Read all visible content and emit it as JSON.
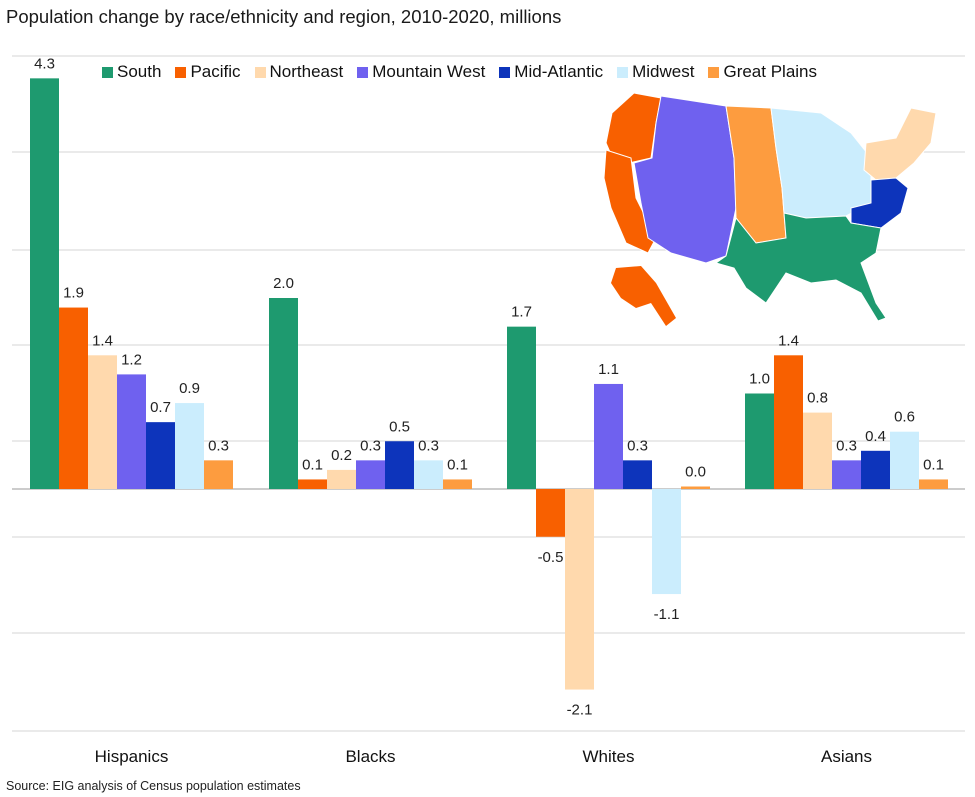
{
  "title": "Population change by race/ethnicity and region, 2010-2020, millions",
  "source": "Source: EIG analysis of Census population estimates",
  "map_icon": "us-regions-map",
  "chart_data": {
    "type": "bar",
    "title": "Population change by race/ethnicity and region, 2010-2020, millions",
    "xlabel": "",
    "ylabel": "",
    "ylim": [
      -2.6,
      4.6
    ],
    "grid": true,
    "legend_position": "top",
    "categories": [
      "Hispanics",
      "Blacks",
      "Whites",
      "Asians"
    ],
    "series": [
      {
        "name": "South",
        "color": "#1e9a6f",
        "values": [
          4.3,
          2.0,
          1.7,
          1.0
        ]
      },
      {
        "name": "Pacific",
        "color": "#f86000",
        "values": [
          1.9,
          0.1,
          -0.5,
          1.4
        ]
      },
      {
        "name": "Northeast",
        "color": "#ffd9ad",
        "values": [
          1.4,
          0.2,
          -2.1,
          0.8
        ]
      },
      {
        "name": "Mountain West",
        "color": "#6f61ef",
        "values": [
          1.2,
          0.3,
          1.1,
          0.3
        ]
      },
      {
        "name": "Mid-Atlantic",
        "color": "#0d34bb",
        "values": [
          0.7,
          0.5,
          0.3,
          0.4
        ]
      },
      {
        "name": "Midwest",
        "color": "#cbedfd",
        "values": [
          0.9,
          0.3,
          -1.1,
          0.6
        ]
      },
      {
        "name": "Great Plains",
        "color": "#fd9c3f",
        "values": [
          0.3,
          0.1,
          0.0,
          0.1
        ]
      }
    ],
    "bar_labels": [
      [
        "4.3",
        "2.0",
        "1.7",
        "1.0"
      ],
      [
        "1.9",
        "0.1",
        "-0.5",
        "1.4"
      ],
      [
        "1.4",
        "0.2",
        "-2.1",
        "0.8"
      ],
      [
        "1.2",
        "0.3",
        "1.1",
        "0.3"
      ],
      [
        "0.7",
        "0.5",
        "0.3",
        "0.4"
      ],
      [
        "0.9",
        "0.3",
        "-1.1",
        "0.6"
      ],
      [
        "0.3",
        "0.1",
        "0.0",
        "0.1"
      ]
    ]
  }
}
